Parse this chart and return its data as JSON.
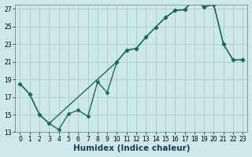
{
  "xlabel": "Humidex (Indice chaleur)",
  "bg_color": "#cce8e8",
  "grid_color": "#aacccc",
  "line_color": "#1a6b5a",
  "line1_x": [
    0,
    1,
    2,
    3,
    4,
    5,
    6,
    7,
    8,
    9,
    10,
    11,
    12,
    13,
    14,
    15,
    16,
    17,
    18,
    19,
    20,
    21,
    22,
    23
  ],
  "line1_y": [
    18.5,
    17.3,
    15.0,
    14.0,
    13.3,
    15.1,
    15.5,
    14.8,
    18.7,
    17.5,
    21.0,
    22.3,
    22.5,
    23.8,
    24.9,
    26.0,
    26.8,
    26.9,
    28.1,
    27.2,
    27.5,
    23.0,
    21.2,
    21.2
  ],
  "line2_x": [
    0,
    1,
    2,
    3,
    10,
    11,
    12,
    13,
    14,
    15,
    16,
    17,
    18,
    19,
    20,
    21,
    22,
    23
  ],
  "line2_y": [
    18.5,
    17.3,
    15.0,
    14.0,
    21.0,
    22.3,
    22.5,
    23.8,
    24.9,
    26.0,
    26.8,
    26.9,
    28.1,
    27.2,
    27.5,
    23.0,
    21.2,
    21.2
  ],
  "ylim": [
    13,
    27.5
  ],
  "xlim": [
    -0.5,
    23.5
  ],
  "yticks": [
    13,
    15,
    17,
    19,
    21,
    23,
    25,
    27
  ],
  "xticks": [
    0,
    1,
    2,
    3,
    4,
    5,
    6,
    7,
    8,
    9,
    10,
    11,
    12,
    13,
    14,
    15,
    16,
    17,
    18,
    19,
    20,
    21,
    22,
    23
  ],
  "marker": "D",
  "markersize": 2.5,
  "linewidth": 1.0,
  "tick_fontsize": 5.5,
  "xlabel_fontsize": 7.5
}
